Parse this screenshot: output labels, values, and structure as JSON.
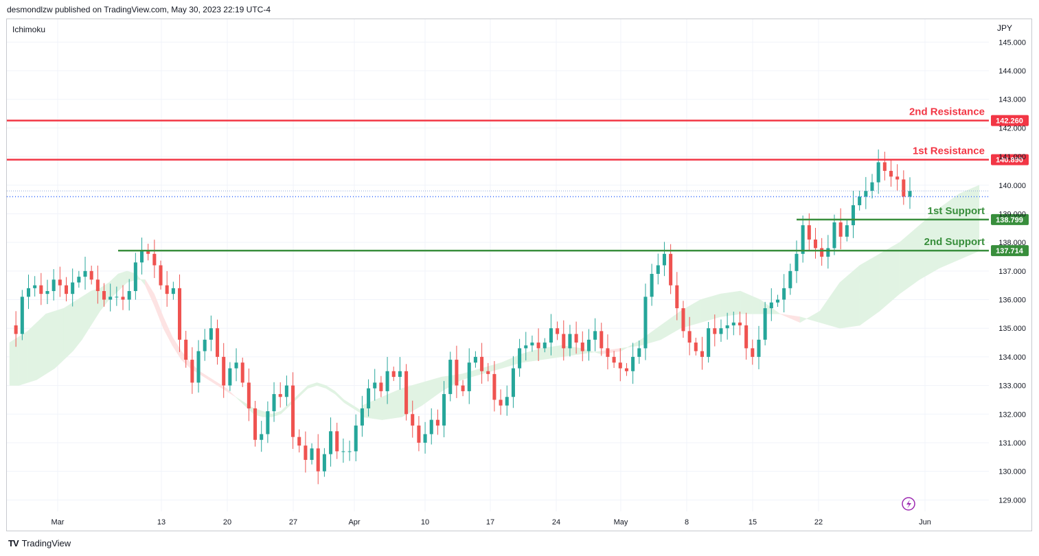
{
  "header": {
    "caption": "desmondlzw published on TradingView.com, May 30, 2023 22:19 UTC-4"
  },
  "indicator_label": "Ichimoku",
  "currency": "JPY",
  "branding": {
    "logo_text": "TradingView",
    "logo_mark": "TV"
  },
  "colors": {
    "bull": "#26a69a",
    "bear": "#ef5350",
    "resistance": "#f23645",
    "support": "#388e3c",
    "cloud_green": "#e1f3e3",
    "cloud_red": "#fde3e3",
    "dotted": "#2962ff",
    "grid": "#f0f3fa"
  },
  "chart_data": {
    "type": "candlestick",
    "y_ticks": [
      "145.000",
      "144.000",
      "143.000",
      "142.000",
      "141.000",
      "140.000",
      "139.000",
      "138.000",
      "137.000",
      "136.000",
      "135.000",
      "134.000",
      "133.000",
      "132.000",
      "131.000",
      "130.000",
      "129.000"
    ],
    "x_ticks": [
      "Mar",
      "13",
      "20",
      "27",
      "Apr",
      "10",
      "17",
      "24",
      "May",
      "8",
      "15",
      "22",
      "Jun"
    ],
    "ylim": [
      128.6,
      145.8
    ],
    "levels": [
      {
        "name": "2nd Resistance",
        "value": 142.26,
        "label": "142.260",
        "kind": "resistance"
      },
      {
        "name": "1st Resistance",
        "value": 140.89,
        "label": "140.890",
        "kind": "resistance"
      },
      {
        "name": "1st Support",
        "value": 138.799,
        "label": "138.799",
        "kind": "support"
      },
      {
        "name": "2nd Support",
        "value": 137.714,
        "label": "137.714",
        "kind": "support"
      }
    ],
    "current_price": 139.6,
    "reference_price": 139.8,
    "closes": [
      135.1,
      134.8,
      136.1,
      136.4,
      136.5,
      136.2,
      136.3,
      136.7,
      136.5,
      136.2,
      136.6,
      136.8,
      137.0,
      136.7,
      136.3,
      136.0,
      136.1,
      136.1,
      136.0,
      136.3,
      137.3,
      137.7,
      137.6,
      137.2,
      136.5,
      136.2,
      136.4,
      134.6,
      133.9,
      133.1,
      134.2,
      134.6,
      135.0,
      134.0,
      133.0,
      133.6,
      133.8,
      133.1,
      132.2,
      131.1,
      131.3,
      132.1,
      132.7,
      132.6,
      133.0,
      131.2,
      130.9,
      130.4,
      130.8,
      130.0,
      130.6,
      131.4,
      130.7,
      130.7,
      130.7,
      131.6,
      132.2,
      132.9,
      133.1,
      132.8,
      133.5,
      133.3,
      133.5,
      132.0,
      131.6,
      131.0,
      131.3,
      131.8,
      131.6,
      132.7,
      133.9,
      133.0,
      132.8,
      133.8,
      134.0,
      133.5,
      133.4,
      132.5,
      132.3,
      132.6,
      133.6,
      134.3,
      134.4,
      134.5,
      134.3,
      134.5,
      135.0,
      134.8,
      134.3,
      134.8,
      134.5,
      134.2,
      134.6,
      134.9,
      134.3,
      134.0,
      133.8,
      133.6,
      133.5,
      134.0,
      134.3,
      136.1,
      136.9,
      137.2,
      137.6,
      136.5,
      135.7,
      134.9,
      134.5,
      134.2,
      134.0,
      135.0,
      134.8,
      135.0,
      135.1,
      135.2,
      135.1,
      134.3,
      134.0,
      134.6,
      135.7,
      135.9,
      136.0,
      136.4,
      137.0,
      137.6,
      138.6,
      138.1,
      137.8,
      137.5,
      137.8,
      138.7,
      138.2,
      138.6,
      139.3,
      139.6,
      139.8,
      140.1,
      140.8,
      140.5,
      140.3,
      140.2,
      139.6,
      139.8
    ],
    "cloud": [
      {
        "span_a": [
          134.5,
          134.7,
          134.9,
          135.2,
          135.5,
          135.6,
          135.7,
          135.9,
          136.1,
          136.3,
          136.4,
          136.6,
          136.9,
          137.0,
          136.9,
          136.5,
          135.8,
          135.0,
          134.4,
          133.9,
          133.6,
          133.4,
          133.2,
          133.0,
          132.8,
          132.6,
          132.4,
          132.2,
          132.1,
          132.0,
          132.1,
          132.4,
          132.7,
          133.0,
          133.1,
          133.0,
          132.8,
          132.5,
          132.3,
          132.1
        ],
        "span_b": [
          133.0,
          133.0,
          133.1,
          133.2,
          133.4,
          133.6,
          133.9,
          134.2,
          134.6,
          135.1,
          135.6,
          136.0,
          136.3,
          136.6,
          136.7,
          136.7,
          136.2,
          135.4,
          134.7,
          134.2,
          133.8,
          133.5,
          133.3,
          133.1,
          132.9,
          132.6,
          132.3,
          132.0,
          131.9,
          131.9,
          132.0,
          132.3,
          132.6,
          132.9,
          133.0,
          132.9,
          132.7,
          132.4,
          132.2,
          132.0
        ],
        "x_start": 0,
        "x_end": 56
      },
      {
        "span_a": [
          132.3,
          132.6,
          132.9,
          133.1,
          133.3,
          133.4,
          133.6,
          133.8,
          134.1,
          134.3,
          134.4,
          134.3,
          134.1,
          134.2,
          134.6,
          135.1,
          135.6,
          136.0,
          136.2,
          136.3,
          136.0,
          135.5,
          135.2,
          135.6,
          136.6,
          137.2,
          137.6,
          138.0,
          138.6,
          139.2,
          139.7,
          140.0
        ],
        "span_b": [
          131.9,
          131.8,
          131.9,
          132.3,
          132.8,
          133.2,
          133.4,
          133.6,
          133.8,
          133.9,
          134.0,
          134.1,
          134.2,
          134.3,
          134.4,
          134.6,
          135.0,
          135.2,
          135.4,
          135.5,
          135.5,
          135.5,
          135.4,
          135.2,
          135.0,
          135.1,
          135.6,
          136.2,
          136.7,
          137.1,
          137.4,
          137.7
        ],
        "x_start": 56,
        "x_end": 154
      }
    ]
  }
}
